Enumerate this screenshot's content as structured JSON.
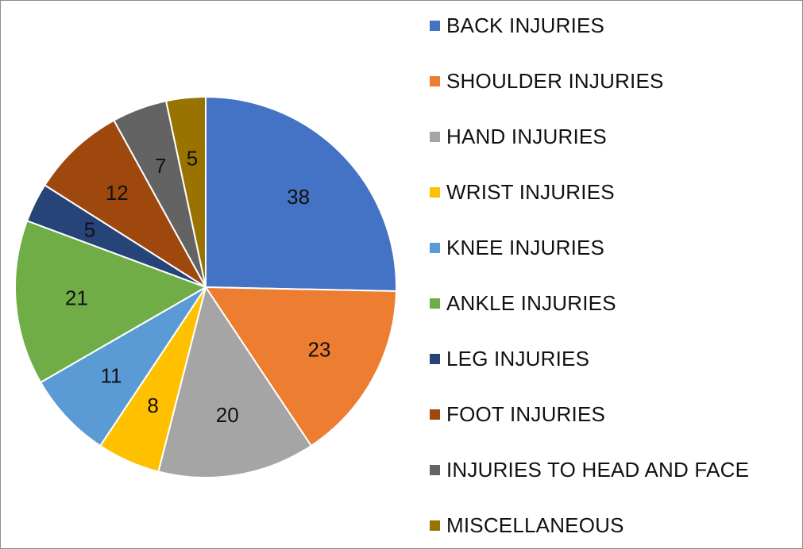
{
  "chart_data": {
    "type": "pie",
    "title": "",
    "categories": [
      "BACK INJURIES",
      "SHOULDER INJURIES",
      "HAND INJURIES",
      "WRIST INJURIES",
      "KNEE INJURIES",
      "ANKLE INJURIES",
      "LEG INJURIES",
      "FOOT INJURIES",
      "INJURIES TO HEAD AND FACE",
      "MISCELLANEOUS"
    ],
    "values": [
      38,
      23,
      20,
      8,
      11,
      21,
      5,
      12,
      7,
      5
    ],
    "data_labels": [
      "38",
      "23",
      "20",
      "8",
      "11",
      "21",
      "5",
      "12",
      "7",
      "5"
    ],
    "colors": [
      "#4472c4",
      "#ed7d31",
      "#a5a5a5",
      "#ffc000",
      "#5b9bd5",
      "#70ad47",
      "#264478",
      "#9e480e",
      "#636363",
      "#997300"
    ],
    "legend_position": "right",
    "start_angle": "top, clockwise"
  },
  "legend": {
    "items": [
      {
        "label": "BACK INJURIES",
        "color": "#4472c4"
      },
      {
        "label": "SHOULDER INJURIES",
        "color": "#ed7d31"
      },
      {
        "label": "HAND INJURIES",
        "color": "#a5a5a5"
      },
      {
        "label": "WRIST INJURIES",
        "color": "#ffc000"
      },
      {
        "label": "KNEE INJURIES",
        "color": "#5b9bd5"
      },
      {
        "label": "ANKLE INJURIES",
        "color": "#70ad47"
      },
      {
        "label": "LEG INJURIES",
        "color": "#264478"
      },
      {
        "label": "FOOT INJURIES",
        "color": "#9e480e"
      },
      {
        "label": "INJURIES TO HEAD AND FACE",
        "color": "#636363"
      },
      {
        "label": "MISCELLANEOUS",
        "color": "#997300"
      }
    ]
  }
}
